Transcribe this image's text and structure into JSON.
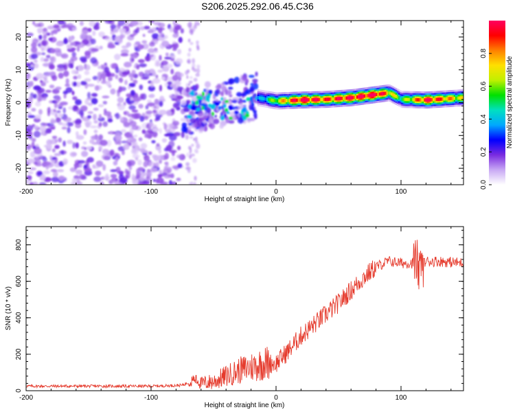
{
  "page_title": "S206.2025.292.06.45.C36",
  "colors": {
    "snr_line": "#e53a2c",
    "axis": "#000000",
    "background": "#ffffff",
    "spectrogram_noise": "#7a2be0",
    "spectrogram_peak": "#e8204a"
  },
  "chart_data": [
    {
      "id": "spectrogram",
      "type": "heatmap",
      "title": "S206.2025.292.06.45.C36",
      "xlabel": "Height of straight line (km)",
      "ylabel": "Frequency (Hz)",
      "xlim": [
        -200,
        150
      ],
      "ylim": [
        -25,
        25
      ],
      "x_ticks": [
        -200,
        -100,
        0,
        100
      ],
      "y_ticks": [
        -20,
        -10,
        0,
        10,
        20
      ],
      "colorbar": {
        "label": "Normalized spectral amplitude",
        "range": [
          0.0,
          1.0
        ],
        "ticks": [
          "0.0",
          "0.2",
          "0.4",
          "0.6",
          "0.8"
        ],
        "colormap": [
          "#ffffff",
          "#c8a8f4",
          "#7a2be0",
          "#0000ff",
          "#00a8ff",
          "#00e0c0",
          "#00e000",
          "#c0f000",
          "#ffe000",
          "#ff8000",
          "#ff0000",
          "#ff0060"
        ]
      },
      "description_of_features": {
        "noise_region_x_range": [
          -200,
          -75
        ],
        "noise_frequency_spread_hz": [
          -25,
          25
        ],
        "transition_region_x_range": [
          -75,
          -15
        ],
        "signal_ridge": {
          "x": [
            -15,
            0,
            20,
            40,
            60,
            80,
            90,
            100,
            120,
            150
          ],
          "freq": [
            1.5,
            0.5,
            0.8,
            1.0,
            1.5,
            2.5,
            3.0,
            1.0,
            0.8,
            1.5
          ],
          "amplitude": [
            0.3,
            0.6,
            0.95,
            0.8,
            0.9,
            0.95,
            0.7,
            0.5,
            0.9,
            0.6
          ]
        }
      }
    },
    {
      "id": "snr",
      "type": "line",
      "xlabel": "Height of straight line (km)",
      "ylabel": "SNR (10 * v/v)",
      "xlim": [
        -200,
        150
      ],
      "ylim": [
        0,
        900
      ],
      "x_ticks": [
        -200,
        -100,
        0,
        100
      ],
      "y_ticks": [
        0,
        200,
        400,
        600,
        800
      ],
      "series": [
        {
          "name": "SNR",
          "x": [
            -200,
            -150,
            -100,
            -75,
            -65,
            -60,
            -50,
            -40,
            -30,
            -20,
            -10,
            0,
            10,
            20,
            30,
            40,
            50,
            60,
            70,
            80,
            90,
            100,
            110,
            115,
            120,
            130,
            140,
            150
          ],
          "y": [
            25,
            25,
            25,
            30,
            60,
            40,
            50,
            80,
            110,
            130,
            150,
            150,
            220,
            300,
            360,
            420,
            480,
            550,
            620,
            680,
            710,
            700,
            700,
            680,
            710,
            710,
            705,
            700
          ]
        }
      ]
    }
  ]
}
